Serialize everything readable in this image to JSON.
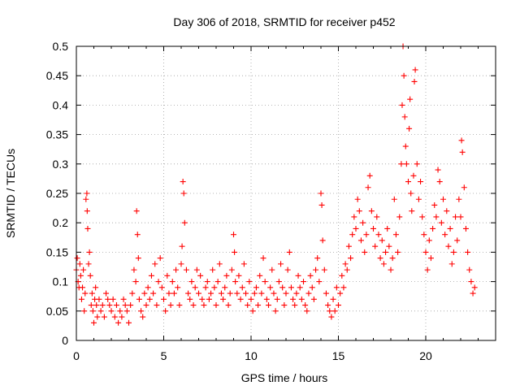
{
  "chart_data": {
    "type": "scatter",
    "title": "Day 306 of 2018, SRMTID for receiver p452",
    "xlabel": "GPS time / hours",
    "ylabel": "SRMTID / TECUs",
    "xlim": [
      0,
      24
    ],
    "ylim": [
      0,
      0.5
    ],
    "x_ticks": [
      0,
      5,
      10,
      15,
      20
    ],
    "x_tick_labels": [
      "0",
      "5",
      "10",
      "15",
      "20"
    ],
    "y_ticks": [
      0,
      0.05,
      0.1,
      0.15,
      0.2,
      0.25,
      0.3,
      0.35,
      0.4,
      0.45,
      0.5
    ],
    "y_tick_labels": [
      "0",
      "0.05",
      "0.1",
      "0.15",
      "0.2",
      "0.25",
      "0.3",
      "0.35",
      "0.4",
      "0.45",
      "0.5"
    ],
    "grid": true,
    "marker": "+",
    "color": "#ff0000",
    "series": [
      {
        "name": "SRMTID",
        "points": [
          [
            0.0,
            0.12
          ],
          [
            0.05,
            0.14
          ],
          [
            0.1,
            0.1
          ],
          [
            0.15,
            0.09
          ],
          [
            0.2,
            0.13
          ],
          [
            0.25,
            0.11
          ],
          [
            0.3,
            0.07
          ],
          [
            0.35,
            0.09
          ],
          [
            0.4,
            0.12
          ],
          [
            0.45,
            0.05
          ],
          [
            0.5,
            0.08
          ],
          [
            0.55,
            0.24
          ],
          [
            0.6,
            0.25
          ],
          [
            0.62,
            0.22
          ],
          [
            0.65,
            0.19
          ],
          [
            0.7,
            0.13
          ],
          [
            0.75,
            0.15
          ],
          [
            0.8,
            0.11
          ],
          [
            0.85,
            0.06
          ],
          [
            0.9,
            0.08
          ],
          [
            0.95,
            0.05
          ],
          [
            1.0,
            0.03
          ],
          [
            1.05,
            0.07
          ],
          [
            1.1,
            0.09
          ],
          [
            1.15,
            0.06
          ],
          [
            1.2,
            0.04
          ],
          [
            1.3,
            0.07
          ],
          [
            1.4,
            0.05
          ],
          [
            1.5,
            0.06
          ],
          [
            1.6,
            0.04
          ],
          [
            1.7,
            0.08
          ],
          [
            1.8,
            0.07
          ],
          [
            1.9,
            0.06
          ],
          [
            2.0,
            0.05
          ],
          [
            2.1,
            0.07
          ],
          [
            2.2,
            0.04
          ],
          [
            2.3,
            0.06
          ],
          [
            2.4,
            0.03
          ],
          [
            2.5,
            0.05
          ],
          [
            2.6,
            0.04
          ],
          [
            2.7,
            0.07
          ],
          [
            2.8,
            0.06
          ],
          [
            2.9,
            0.05
          ],
          [
            3.0,
            0.03
          ],
          [
            3.1,
            0.06
          ],
          [
            3.2,
            0.08
          ],
          [
            3.3,
            0.12
          ],
          [
            3.4,
            0.1
          ],
          [
            3.45,
            0.22
          ],
          [
            3.5,
            0.18
          ],
          [
            3.55,
            0.14
          ],
          [
            3.6,
            0.07
          ],
          [
            3.7,
            0.05
          ],
          [
            3.8,
            0.04
          ],
          [
            3.9,
            0.08
          ],
          [
            4.0,
            0.06
          ],
          [
            4.1,
            0.09
          ],
          [
            4.2,
            0.07
          ],
          [
            4.3,
            0.11
          ],
          [
            4.4,
            0.08
          ],
          [
            4.5,
            0.13
          ],
          [
            4.6,
            0.06
          ],
          [
            4.7,
            0.1
          ],
          [
            4.8,
            0.14
          ],
          [
            4.9,
            0.09
          ],
          [
            5.0,
            0.07
          ],
          [
            5.1,
            0.05
          ],
          [
            5.2,
            0.11
          ],
          [
            5.3,
            0.08
          ],
          [
            5.4,
            0.06
          ],
          [
            5.5,
            0.1
          ],
          [
            5.6,
            0.08
          ],
          [
            5.7,
            0.12
          ],
          [
            5.8,
            0.09
          ],
          [
            5.9,
            0.06
          ],
          [
            6.0,
            0.13
          ],
          [
            6.05,
            0.16
          ],
          [
            6.1,
            0.27
          ],
          [
            6.15,
            0.25
          ],
          [
            6.2,
            0.2
          ],
          [
            6.3,
            0.12
          ],
          [
            6.4,
            0.08
          ],
          [
            6.5,
            0.07
          ],
          [
            6.6,
            0.1
          ],
          [
            6.7,
            0.06
          ],
          [
            6.8,
            0.09
          ],
          [
            6.9,
            0.12
          ],
          [
            7.0,
            0.08
          ],
          [
            7.1,
            0.11
          ],
          [
            7.2,
            0.07
          ],
          [
            7.3,
            0.06
          ],
          [
            7.4,
            0.09
          ],
          [
            7.5,
            0.1
          ],
          [
            7.6,
            0.07
          ],
          [
            7.7,
            0.08
          ],
          [
            7.8,
            0.12
          ],
          [
            7.9,
            0.09
          ],
          [
            8.0,
            0.06
          ],
          [
            8.1,
            0.1
          ],
          [
            8.2,
            0.13
          ],
          [
            8.3,
            0.08
          ],
          [
            8.4,
            0.07
          ],
          [
            8.5,
            0.09
          ],
          [
            8.6,
            0.11
          ],
          [
            8.7,
            0.06
          ],
          [
            8.8,
            0.08
          ],
          [
            8.9,
            0.12
          ],
          [
            9.0,
            0.18
          ],
          [
            9.05,
            0.15
          ],
          [
            9.1,
            0.1
          ],
          [
            9.2,
            0.08
          ],
          [
            9.3,
            0.11
          ],
          [
            9.4,
            0.07
          ],
          [
            9.5,
            0.09
          ],
          [
            9.6,
            0.13
          ],
          [
            9.7,
            0.08
          ],
          [
            9.8,
            0.06
          ],
          [
            9.9,
            0.1
          ],
          [
            10.0,
            0.07
          ],
          [
            10.1,
            0.05
          ],
          [
            10.2,
            0.08
          ],
          [
            10.3,
            0.09
          ],
          [
            10.4,
            0.06
          ],
          [
            10.5,
            0.11
          ],
          [
            10.6,
            0.08
          ],
          [
            10.7,
            0.14
          ],
          [
            10.8,
            0.1
          ],
          [
            10.9,
            0.07
          ],
          [
            11.0,
            0.06
          ],
          [
            11.1,
            0.09
          ],
          [
            11.2,
            0.12
          ],
          [
            11.3,
            0.08
          ],
          [
            11.4,
            0.05
          ],
          [
            11.5,
            0.07
          ],
          [
            11.6,
            0.1
          ],
          [
            11.7,
            0.13
          ],
          [
            11.8,
            0.09
          ],
          [
            11.9,
            0.06
          ],
          [
            12.0,
            0.08
          ],
          [
            12.1,
            0.12
          ],
          [
            12.2,
            0.15
          ],
          [
            12.3,
            0.09
          ],
          [
            12.4,
            0.07
          ],
          [
            12.5,
            0.06
          ],
          [
            12.6,
            0.08
          ],
          [
            12.7,
            0.11
          ],
          [
            12.8,
            0.09
          ],
          [
            12.9,
            0.07
          ],
          [
            13.0,
            0.1
          ],
          [
            13.1,
            0.06
          ],
          [
            13.2,
            0.05
          ],
          [
            13.3,
            0.08
          ],
          [
            13.4,
            0.11
          ],
          [
            13.5,
            0.09
          ],
          [
            13.6,
            0.07
          ],
          [
            13.7,
            0.12
          ],
          [
            13.8,
            0.14
          ],
          [
            13.9,
            0.1
          ],
          [
            14.0,
            0.25
          ],
          [
            14.05,
            0.23
          ],
          [
            14.1,
            0.17
          ],
          [
            14.2,
            0.12
          ],
          [
            14.3,
            0.08
          ],
          [
            14.4,
            0.06
          ],
          [
            14.5,
            0.05
          ],
          [
            14.6,
            0.04
          ],
          [
            14.7,
            0.07
          ],
          [
            14.8,
            0.05
          ],
          [
            14.9,
            0.09
          ],
          [
            15.0,
            0.06
          ],
          [
            15.1,
            0.08
          ],
          [
            15.2,
            0.11
          ],
          [
            15.3,
            0.09
          ],
          [
            15.4,
            0.13
          ],
          [
            15.5,
            0.12
          ],
          [
            15.6,
            0.16
          ],
          [
            15.7,
            0.14
          ],
          [
            15.8,
            0.18
          ],
          [
            15.9,
            0.21
          ],
          [
            16.0,
            0.19
          ],
          [
            16.1,
            0.24
          ],
          [
            16.2,
            0.22
          ],
          [
            16.3,
            0.17
          ],
          [
            16.4,
            0.2
          ],
          [
            16.5,
            0.15
          ],
          [
            16.6,
            0.18
          ],
          [
            16.7,
            0.26
          ],
          [
            16.8,
            0.28
          ],
          [
            16.9,
            0.22
          ],
          [
            17.0,
            0.19
          ],
          [
            17.1,
            0.16
          ],
          [
            17.2,
            0.21
          ],
          [
            17.3,
            0.18
          ],
          [
            17.4,
            0.14
          ],
          [
            17.5,
            0.17
          ],
          [
            17.6,
            0.13
          ],
          [
            17.7,
            0.15
          ],
          [
            17.8,
            0.19
          ],
          [
            17.9,
            0.16
          ],
          [
            18.0,
            0.12
          ],
          [
            18.1,
            0.14
          ],
          [
            18.2,
            0.24
          ],
          [
            18.3,
            0.18
          ],
          [
            18.4,
            0.15
          ],
          [
            18.5,
            0.21
          ],
          [
            18.6,
            0.3
          ],
          [
            18.65,
            0.4
          ],
          [
            18.7,
            0.5
          ],
          [
            18.75,
            0.45
          ],
          [
            18.8,
            0.38
          ],
          [
            18.85,
            0.33
          ],
          [
            18.9,
            0.3
          ],
          [
            19.0,
            0.27
          ],
          [
            19.05,
            0.36
          ],
          [
            19.1,
            0.41
          ],
          [
            19.15,
            0.25
          ],
          [
            19.2,
            0.22
          ],
          [
            19.3,
            0.28
          ],
          [
            19.35,
            0.44
          ],
          [
            19.4,
            0.46
          ],
          [
            19.5,
            0.3
          ],
          [
            19.6,
            0.24
          ],
          [
            19.7,
            0.27
          ],
          [
            19.8,
            0.21
          ],
          [
            19.9,
            0.18
          ],
          [
            20.0,
            0.15
          ],
          [
            20.1,
            0.12
          ],
          [
            20.2,
            0.17
          ],
          [
            20.3,
            0.14
          ],
          [
            20.4,
            0.19
          ],
          [
            20.5,
            0.23
          ],
          [
            20.6,
            0.21
          ],
          [
            20.7,
            0.29
          ],
          [
            20.8,
            0.27
          ],
          [
            20.9,
            0.2
          ],
          [
            21.0,
            0.24
          ],
          [
            21.1,
            0.18
          ],
          [
            21.2,
            0.22
          ],
          [
            21.3,
            0.16
          ],
          [
            21.4,
            0.19
          ],
          [
            21.5,
            0.13
          ],
          [
            21.6,
            0.15
          ],
          [
            21.7,
            0.21
          ],
          [
            21.8,
            0.17
          ],
          [
            21.9,
            0.24
          ],
          [
            22.0,
            0.21
          ],
          [
            22.05,
            0.34
          ],
          [
            22.1,
            0.32
          ],
          [
            22.2,
            0.26
          ],
          [
            22.3,
            0.19
          ],
          [
            22.4,
            0.15
          ],
          [
            22.5,
            0.12
          ],
          [
            22.6,
            0.1
          ],
          [
            22.7,
            0.08
          ],
          [
            22.8,
            0.09
          ]
        ]
      }
    ]
  }
}
